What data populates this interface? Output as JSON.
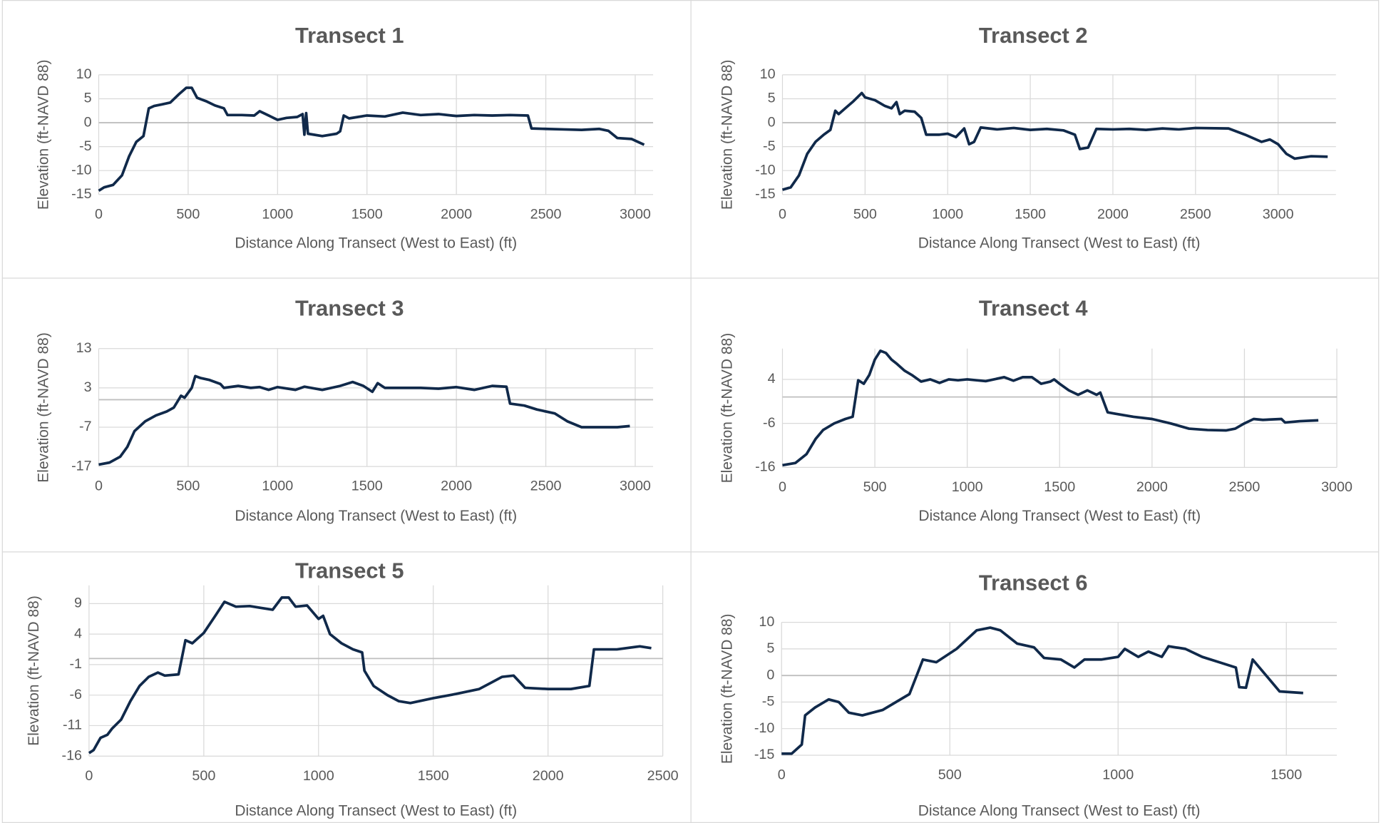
{
  "chart_data": [
    {
      "type": "line",
      "title": "Transect 1",
      "x_label": "Distance Along Transect (West to East) (ft)",
      "y_label": "Elevation (ft-NAVD 88)",
      "color": "#10294a",
      "grid": true,
      "xlim": [
        0,
        3100
      ],
      "xticks": [
        0,
        500,
        1000,
        1500,
        2000,
        2500,
        3000
      ],
      "ylim": [
        -15,
        10
      ],
      "yticks": [
        10,
        5,
        0,
        -5,
        -10,
        -15
      ],
      "x": [
        0,
        30,
        80,
        130,
        170,
        210,
        250,
        280,
        310,
        350,
        400,
        450,
        490,
        520,
        550,
        600,
        650,
        700,
        720,
        800,
        870,
        900,
        950,
        1000,
        1050,
        1110,
        1140,
        1150,
        1160,
        1170,
        1250,
        1330,
        1350,
        1370,
        1400,
        1500,
        1600,
        1700,
        1800,
        1900,
        2000,
        2100,
        2200,
        2300,
        2400,
        2420,
        2500,
        2600,
        2700,
        2800,
        2850,
        2900,
        2980,
        3050
      ],
      "values": [
        -14.2,
        -13.5,
        -13,
        -11,
        -7,
        -4,
        -2.8,
        3,
        3.5,
        3.8,
        4.2,
        6,
        7.3,
        7.3,
        5.2,
        4.5,
        3.6,
        3,
        1.6,
        1.6,
        1.5,
        2.4,
        1.5,
        0.6,
        1,
        1.2,
        1.8,
        -2.5,
        2,
        -2.3,
        -2.8,
        -2.3,
        -1.8,
        1.5,
        0.9,
        1.5,
        1.3,
        2.1,
        1.6,
        1.8,
        1.4,
        1.6,
        1.5,
        1.6,
        1.5,
        -1.2,
        -1.3,
        -1.4,
        -1.5,
        -1.3,
        -1.7,
        -3.2,
        -3.4,
        -4.6
      ]
    },
    {
      "type": "line",
      "title": "Transect 2",
      "x_label": "Distance Along Transect (West to East) (ft)",
      "y_label": "Elevation (ft-NAVD 88)",
      "color": "#10294a",
      "grid": true,
      "xlim": [
        0,
        3350
      ],
      "xticks": [
        0,
        500,
        1000,
        1500,
        2000,
        2500,
        3000
      ],
      "ylim": [
        -15,
        10
      ],
      "yticks": [
        10,
        5,
        0,
        -5,
        -10,
        -15
      ],
      "x": [
        0,
        50,
        100,
        150,
        200,
        250,
        290,
        320,
        340,
        380,
        430,
        480,
        500,
        560,
        620,
        660,
        690,
        710,
        740,
        800,
        840,
        870,
        950,
        1000,
        1050,
        1100,
        1130,
        1160,
        1200,
        1300,
        1400,
        1500,
        1600,
        1700,
        1770,
        1800,
        1850,
        1900,
        2000,
        2100,
        2200,
        2300,
        2400,
        2500,
        2700,
        2800,
        2900,
        2950,
        3000,
        3050,
        3100,
        3200,
        3300
      ],
      "values": [
        -14,
        -13.5,
        -11,
        -6.5,
        -4,
        -2.5,
        -1.5,
        2.5,
        1.8,
        3,
        4.5,
        6.2,
        5.3,
        4.7,
        3.5,
        3,
        4.3,
        1.8,
        2.5,
        2.3,
        1,
        -2.5,
        -2.5,
        -2.3,
        -3,
        -1.2,
        -4.5,
        -4,
        -1,
        -1.4,
        -1.1,
        -1.5,
        -1.3,
        -1.6,
        -2.5,
        -5.5,
        -5.2,
        -1.3,
        -1.4,
        -1.3,
        -1.5,
        -1.2,
        -1.4,
        -1.1,
        -1.2,
        -2.5,
        -4,
        -3.5,
        -4.5,
        -6.5,
        -7.5,
        -7,
        -7.1
      ]
    },
    {
      "type": "line",
      "title": "Transect 3",
      "x_label": "Distance Along Transect (West to East) (ft)",
      "y_label": "Elevation (ft-NAVD 88)",
      "color": "#10294a",
      "grid": true,
      "xlim": [
        0,
        3100
      ],
      "xticks": [
        0,
        500,
        1000,
        1500,
        2000,
        2500,
        3000
      ],
      "ylim": [
        -17,
        13
      ],
      "yticks": [
        13,
        3,
        -7,
        -17
      ],
      "x": [
        0,
        60,
        120,
        160,
        200,
        260,
        320,
        380,
        420,
        460,
        480,
        520,
        540,
        570,
        620,
        680,
        700,
        780,
        850,
        900,
        950,
        1000,
        1100,
        1150,
        1250,
        1350,
        1420,
        1480,
        1530,
        1560,
        1600,
        1700,
        1800,
        1900,
        2000,
        2100,
        2200,
        2280,
        2300,
        2380,
        2450,
        2550,
        2620,
        2700,
        2800,
        2900,
        2970
      ],
      "values": [
        -16.5,
        -16,
        -14.5,
        -12,
        -8,
        -5.5,
        -4,
        -3,
        -2,
        1,
        0.5,
        3,
        6,
        5.5,
        5,
        4,
        3,
        3.5,
        3,
        3.2,
        2.5,
        3.2,
        2.5,
        3.3,
        2.5,
        3.5,
        4.5,
        3.5,
        2,
        4.2,
        3,
        3,
        3,
        2.8,
        3.2,
        2.5,
        3.5,
        3.3,
        -1,
        -1.5,
        -2.5,
        -3.5,
        -5.5,
        -7,
        -7,
        -7,
        -6.7
      ]
    },
    {
      "type": "line",
      "title": "Transect 4",
      "x_label": "Distance Along Transect (West to East) (ft)",
      "y_label": "Elevation (ft-NAVD 88)",
      "color": "#10294a",
      "grid": true,
      "xlim": [
        0,
        3000
      ],
      "xticks": [
        0,
        500,
        1000,
        1500,
        2000,
        2500,
        3000
      ],
      "ylim": [
        -16,
        11
      ],
      "yticks": [
        4,
        -6,
        -16
      ],
      "x": [
        0,
        70,
        130,
        180,
        220,
        280,
        340,
        380,
        410,
        440,
        470,
        500,
        530,
        560,
        590,
        620,
        660,
        700,
        750,
        800,
        850,
        900,
        950,
        1000,
        1100,
        1200,
        1250,
        1300,
        1350,
        1400,
        1450,
        1470,
        1500,
        1550,
        1600,
        1650,
        1700,
        1720,
        1760,
        1800,
        1900,
        2000,
        2100,
        2200,
        2300,
        2400,
        2450,
        2500,
        2550,
        2600,
        2700,
        2720,
        2800,
        2900
      ],
      "values": [
        -15.5,
        -15,
        -13,
        -9.5,
        -7.5,
        -6,
        -5,
        -4.5,
        3.8,
        3,
        5,
        8.5,
        10.5,
        10,
        8.5,
        7.5,
        6,
        5,
        3.5,
        4,
        3.2,
        4,
        3.8,
        4,
        3.6,
        4.5,
        3.7,
        4.5,
        4.5,
        3,
        3.5,
        4,
        3,
        1.5,
        0.5,
        1.5,
        0.5,
        1,
        -3.5,
        -3.8,
        -4.5,
        -5,
        -6,
        -7.2,
        -7.5,
        -7.6,
        -7.2,
        -6,
        -5,
        -5.2,
        -5,
        -5.8,
        -5.5,
        -5.3
      ]
    },
    {
      "type": "line",
      "title": "Transect 5",
      "x_label": "Distance Along Transect (West to East) (ft)",
      "y_label": "Elevation (ft-NAVD 88)",
      "color": "#10294a",
      "grid": true,
      "xlim": [
        0,
        2500
      ],
      "xticks": [
        0,
        500,
        1000,
        1500,
        2000,
        2500
      ],
      "ylim": [
        -16,
        12
      ],
      "yticks": [
        9,
        4,
        -1,
        -6,
        -11,
        -16
      ],
      "x": [
        0,
        20,
        50,
        80,
        100,
        140,
        180,
        220,
        260,
        300,
        330,
        390,
        420,
        450,
        500,
        550,
        590,
        640,
        700,
        750,
        800,
        840,
        870,
        900,
        950,
        1000,
        1020,
        1050,
        1100,
        1150,
        1190,
        1200,
        1240,
        1300,
        1350,
        1400,
        1500,
        1600,
        1700,
        1750,
        1800,
        1850,
        1900,
        2000,
        2100,
        2180,
        2200,
        2300,
        2400,
        2450
      ],
      "values": [
        -15.5,
        -15,
        -13,
        -12.5,
        -11.5,
        -10,
        -7,
        -4.5,
        -3,
        -2.3,
        -2.8,
        -2.6,
        3,
        2.5,
        4.2,
        7,
        9.3,
        8.5,
        8.6,
        8.3,
        8,
        10,
        10,
        8.5,
        8.7,
        6.5,
        7,
        4,
        2.5,
        1.5,
        1,
        -2,
        -4.5,
        -6,
        -7,
        -7.3,
        -6.5,
        -5.8,
        -5,
        -4,
        -3,
        -2.8,
        -4.8,
        -5,
        -5,
        -4.5,
        1.5,
        1.5,
        2,
        1.7
      ]
    },
    {
      "type": "line",
      "title": "Transect 6",
      "x_label": "Distance Along Transect (West to East) (ft)",
      "y_label": "Elevation (ft-NAVD 88)",
      "color": "#10294a",
      "grid": true,
      "xlim": [
        0,
        1650
      ],
      "xticks": [
        0,
        500,
        1000,
        1500
      ],
      "ylim": [
        -15,
        10
      ],
      "yticks": [
        10,
        5,
        0,
        -5,
        -10,
        -15
      ],
      "x": [
        0,
        30,
        60,
        70,
        100,
        140,
        170,
        200,
        240,
        300,
        380,
        420,
        460,
        520,
        580,
        620,
        650,
        700,
        750,
        780,
        830,
        870,
        900,
        950,
        1000,
        1020,
        1060,
        1090,
        1130,
        1150,
        1200,
        1250,
        1300,
        1350,
        1360,
        1380,
        1400,
        1440,
        1480,
        1550
      ],
      "values": [
        -14.7,
        -14.7,
        -13,
        -7.5,
        -6,
        -4.5,
        -5,
        -7,
        -7.5,
        -6.5,
        -3.5,
        3,
        2.5,
        5,
        8.5,
        9,
        8.5,
        6,
        5.3,
        3.3,
        3,
        1.5,
        3,
        3,
        3.5,
        5,
        3.5,
        4.5,
        3.5,
        5.5,
        5,
        3.5,
        2.5,
        1.5,
        -2.2,
        -2.3,
        3,
        0,
        -3,
        -3.3
      ]
    }
  ]
}
